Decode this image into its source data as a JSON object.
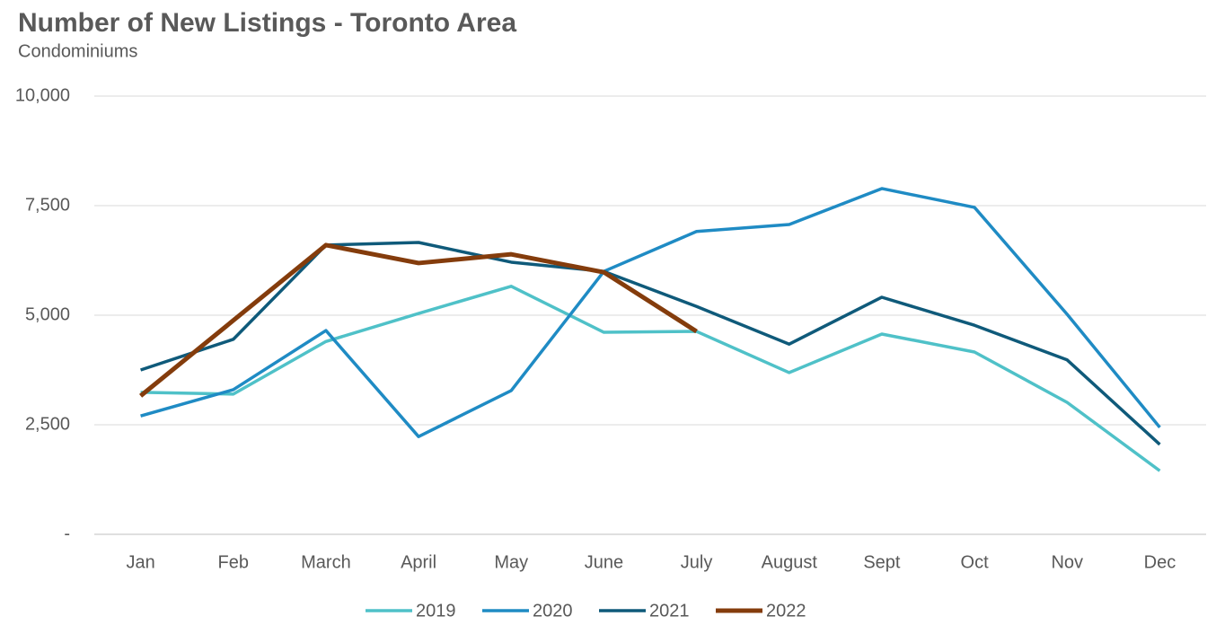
{
  "chart_data": {
    "type": "line",
    "title": "Number of New Listings - Toronto Area",
    "subtitle": "Condominiums",
    "categories": [
      "Jan",
      "Feb",
      "March",
      "April",
      "May",
      "June",
      "July",
      "August",
      "Sept",
      "Oct",
      "Nov",
      "Dec"
    ],
    "series": [
      {
        "name": "2019",
        "color": "#4fc1c8",
        "values": [
          3240,
          3200,
          4400,
          5040,
          5660,
          4610,
          4630,
          3690,
          4570,
          4160,
          3010,
          1450
        ]
      },
      {
        "name": "2020",
        "color": "#1f8bc4",
        "values": [
          2700,
          3300,
          4650,
          2230,
          3280,
          6000,
          6910,
          7070,
          7890,
          7460,
          5020,
          2440
        ]
      },
      {
        "name": "2021",
        "color": "#0f5a7a",
        "values": [
          3750,
          4450,
          6600,
          6660,
          6210,
          6000,
          5200,
          4340,
          5410,
          4770,
          3980,
          2050
        ]
      },
      {
        "name": "2022",
        "color": "#843c0c",
        "values": [
          3160,
          4880,
          6600,
          6190,
          6390,
          5980,
          4630,
          null,
          null,
          null,
          null,
          null
        ]
      }
    ],
    "ylim": [
      0,
      10000
    ],
    "yticks": [
      {
        "value": 0,
        "label": "-"
      },
      {
        "value": 2500,
        "label": "2,500"
      },
      {
        "value": 5000,
        "label": "5,000"
      },
      {
        "value": 7500,
        "label": "7,500"
      },
      {
        "value": 10000,
        "label": "10,000"
      }
    ],
    "grid": true,
    "legend": "bottom"
  }
}
